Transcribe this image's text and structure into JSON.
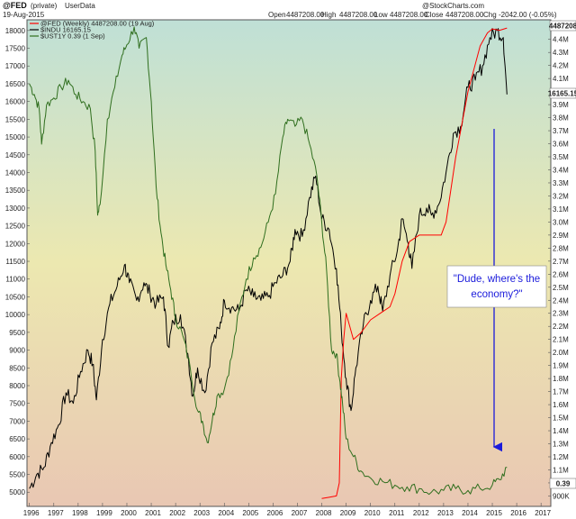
{
  "header": {
    "symbol": "@FED",
    "qualifier": "(private)",
    "source": "UserData",
    "date": "19-Aug-2015",
    "open_label": "Open",
    "open_value": "4487208.00",
    "high_label": "High",
    "high_value": "4487208.00",
    "low_label": "Low",
    "low_value": "4487208.00",
    "close_label": "Close",
    "close_value": "4487208.00",
    "chg_label": "Chg",
    "chg_value": "-2042.00 (-0.05%)",
    "watermark": "@StockCharts.com"
  },
  "legend": {
    "fed": "@FED (Weekly) 4487208.00 (19 Aug)",
    "indu": "$INDU 16165.15",
    "ust": "$UST1Y 0.39 (1 Sep)"
  },
  "annotation": {
    "line1": "\"Dude, where's the",
    "line2": "economy?\""
  },
  "badges": {
    "fed_last": "4487208",
    "indu_last": "16165.15",
    "ust_last": "0.39"
  },
  "colors": {
    "fed": "#ff0000",
    "indu": "#000000",
    "ust": "#2f6e1e",
    "annotation": "#1a1adb",
    "bg_top": "#bfe0d6",
    "bg_mid": "#ece8b0",
    "bg_bottom": "#e9c7b3"
  },
  "chart_data": {
    "type": "line",
    "x_ticks": [
      "1996",
      "1997",
      "1998",
      "1999",
      "2000",
      "2001",
      "2002",
      "2003",
      "2004",
      "2005",
      "2006",
      "2007",
      "2008",
      "2009",
      "2010",
      "2011",
      "2012",
      "2013",
      "2014",
      "2015",
      "2016",
      "2017"
    ],
    "xlim": [
      1995.9,
      2017.4
    ],
    "left_axis": {
      "label": "",
      "ticks": [
        "5000",
        "5500",
        "6000",
        "6500",
        "7000",
        "7500",
        "8000",
        "8500",
        "9000",
        "9500",
        "10000",
        "10500",
        "11000",
        "11500",
        "12000",
        "12500",
        "13000",
        "13500",
        "14000",
        "14500",
        "15000",
        "15500",
        "16000",
        "16500",
        "17000",
        "17500",
        "18000"
      ],
      "ylim": [
        4600,
        18300
      ]
    },
    "right_axis": {
      "label": "",
      "ticks": [
        "900K",
        "1.0M",
        "1.1M",
        "1.2M",
        "1.3M",
        "1.4M",
        "1.5M",
        "1.6M",
        "1.7M",
        "1.8M",
        "1.9M",
        "2.0M",
        "2.1M",
        "2.2M",
        "2.3M",
        "2.4M",
        "2.5M",
        "2.6M",
        "2.7M",
        "2.8M",
        "2.9M",
        "3.0M",
        "3.1M",
        "3.2M",
        "3.3M",
        "3.4M",
        "3.5M",
        "3.6M",
        "3.7M",
        "3.8M",
        "3.9M",
        "4.0M",
        "4.1M",
        "4.2M",
        "4.3M",
        "4.4M"
      ],
      "ylim": [
        820000,
        4550000
      ]
    },
    "series": [
      {
        "name": "$INDU",
        "axis": "left",
        "x": [
          1996.0,
          1996.3,
          1996.6,
          1996.9,
          1997.2,
          1997.5,
          1997.8,
          1998.1,
          1998.4,
          1998.6,
          1998.75,
          1999.0,
          1999.3,
          1999.6,
          1999.9,
          2000.1,
          2000.4,
          2000.7,
          2000.95,
          2001.2,
          2001.5,
          2001.7,
          2001.9,
          2002.2,
          2002.5,
          2002.7,
          2002.9,
          2003.2,
          2003.5,
          2003.8,
          2004.0,
          2004.3,
          2004.6,
          2004.9,
          2005.2,
          2005.5,
          2005.8,
          2006.1,
          2006.4,
          2006.7,
          2006.9,
          2007.2,
          2007.5,
          2007.75,
          2008.0,
          2008.3,
          2008.6,
          2008.8,
          2009.0,
          2009.2,
          2009.4,
          2009.7,
          2010.0,
          2010.3,
          2010.5,
          2010.8,
          2011.1,
          2011.3,
          2011.55,
          2011.7,
          2012.0,
          2012.3,
          2012.5,
          2012.8,
          2013.1,
          2013.4,
          2013.7,
          2014.0,
          2014.3,
          2014.6,
          2014.9,
          2015.2,
          2015.45,
          2015.6
        ],
        "values": [
          5100,
          5500,
          5700,
          6400,
          6900,
          7800,
          7500,
          8400,
          9000,
          8600,
          7600,
          9300,
          10300,
          10800,
          11400,
          10900,
          10400,
          10900,
          10600,
          10300,
          10500,
          9100,
          9800,
          10000,
          8900,
          7700,
          8500,
          7800,
          9200,
          9600,
          10400,
          10200,
          10100,
          10700,
          10500,
          10400,
          10500,
          10900,
          11100,
          11500,
          12400,
          12200,
          13300,
          13900,
          12700,
          12400,
          11300,
          9600,
          8200,
          7300,
          8500,
          9700,
          10400,
          10800,
          10100,
          11100,
          11800,
          12700,
          12000,
          11300,
          12800,
          13000,
          12800,
          13100,
          14000,
          15100,
          15300,
          16400,
          16600,
          17000,
          17800,
          18000,
          17800,
          16200
        ]
      },
      {
        "name": "@FED",
        "axis": "right",
        "x": [
          2008.0,
          2008.3,
          2008.6,
          2008.72,
          2008.8,
          2008.9,
          2009.0,
          2009.3,
          2009.6,
          2010.0,
          2010.4,
          2010.8,
          2011.0,
          2011.3,
          2011.6,
          2012.0,
          2012.5,
          2012.9,
          2013.1,
          2013.5,
          2014.0,
          2014.5,
          2014.8,
          2015.0,
          2015.3,
          2015.6
        ],
        "values": [
          880000,
          890000,
          900000,
          1000000,
          1800000,
          2100000,
          2300000,
          2100000,
          2150000,
          2250000,
          2300000,
          2350000,
          2450000,
          2700000,
          2850000,
          2900000,
          2900000,
          2900000,
          3000000,
          3500000,
          4000000,
          4350000,
          4450000,
          4480000,
          4470000,
          4487208
        ]
      },
      {
        "name": "$UST1Y",
        "axis": "left",
        "x": [
          1996.0,
          1996.2,
          1996.4,
          1996.5,
          1996.7,
          1997.0,
          1997.3,
          1997.6,
          1997.9,
          1998.2,
          1998.5,
          1998.7,
          1998.8,
          1998.9,
          1999.2,
          1999.5,
          1999.8,
          2000.0,
          2000.3,
          2000.5,
          2000.8,
          2001.0,
          2001.2,
          2001.4,
          2001.6,
          2001.8,
          2002.0,
          2002.3,
          2002.6,
          2002.9,
          2003.1,
          2003.3,
          2003.5,
          2003.7,
          2004.0,
          2004.3,
          2004.6,
          2004.9,
          2005.2,
          2005.5,
          2005.8,
          2006.1,
          2006.4,
          2006.6,
          2006.9,
          2007.2,
          2007.5,
          2007.8,
          2008.0,
          2008.2,
          2008.4,
          2008.6,
          2008.75,
          2008.85,
          2009.0,
          2009.3,
          2009.6,
          2010.0,
          2010.5,
          2011.0,
          2011.5,
          2012.0,
          2012.5,
          2013.0,
          2013.5,
          2014.0,
          2014.5,
          2015.0,
          2015.3,
          2015.6
        ],
        "values": [
          16500,
          16200,
          15800,
          14800,
          15900,
          16100,
          16400,
          16600,
          16200,
          16000,
          15800,
          14600,
          12800,
          13100,
          15500,
          16400,
          17300,
          17600,
          18100,
          17500,
          17800,
          16000,
          13600,
          12300,
          11400,
          10700,
          9900,
          9400,
          8500,
          7300,
          7000,
          6400,
          7000,
          7700,
          7900,
          8800,
          10100,
          11000,
          11600,
          11900,
          12600,
          13400,
          15000,
          15500,
          15300,
          15500,
          14800,
          13900,
          12600,
          11200,
          9000,
          8900,
          8100,
          7500,
          6500,
          6000,
          5600,
          5400,
          5300,
          5200,
          5150,
          5100,
          5000,
          5050,
          5100,
          5050,
          5100,
          5200,
          5350,
          5700
        ]
      }
    ],
    "annotations": [
      {
        "text": "\"Dude, where's the economy?\""
      }
    ],
    "grid": false,
    "legend_position": "top-left"
  }
}
